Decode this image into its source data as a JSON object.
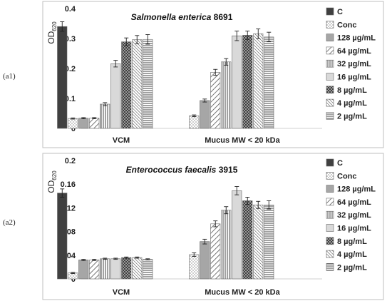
{
  "chart_data": [
    {
      "panel_label": "(a1)",
      "type": "bar",
      "title": "Salmonella enterica",
      "title_strain": "8691",
      "ylabel": "OD",
      "ylabel_sub": "620",
      "ylim": [
        0,
        0.4
      ],
      "yticks": [
        0,
        0.1,
        0.2,
        0.3,
        0.4
      ],
      "ytick_labels": [
        "0",
        "0.1",
        "0.2",
        "0.3",
        "0.4"
      ],
      "categories": [
        "VCM",
        "Mucus MW < 20 kDa"
      ],
      "error_bars": true,
      "grid": false,
      "legend_position": "right",
      "series": [
        {
          "name": "C",
          "values": [
            0.34,
            null
          ],
          "errors": [
            0.016,
            null
          ]
        },
        {
          "name": "Conc",
          "values": [
            0.033,
            0.042
          ],
          "errors": [
            0.002,
            0.003
          ]
        },
        {
          "name": "128 µg/mL",
          "values": [
            0.034,
            0.093
          ],
          "errors": [
            0.002,
            0.005
          ]
        },
        {
          "name": "64 µg/mL",
          "values": [
            0.034,
            0.187
          ],
          "errors": [
            0.002,
            0.01
          ]
        },
        {
          "name": "32 µg/mL",
          "values": [
            0.081,
            0.222
          ],
          "errors": [
            0.005,
            0.011
          ]
        },
        {
          "name": "16 µg/mL",
          "values": [
            0.216,
            0.309
          ],
          "errors": [
            0.011,
            0.016
          ]
        },
        {
          "name": "8 µg/mL",
          "values": [
            0.289,
            0.311
          ],
          "errors": [
            0.013,
            0.014
          ]
        },
        {
          "name": "4 µg/mL",
          "values": [
            0.296,
            0.316
          ],
          "errors": [
            0.014,
            0.016
          ]
        },
        {
          "name": "2 µg/mL",
          "values": [
            0.297,
            0.305
          ],
          "errors": [
            0.016,
            0.016
          ]
        }
      ]
    },
    {
      "panel_label": "(a2)",
      "type": "bar",
      "title": "Enterococcus faecalis",
      "title_strain": "3915",
      "ylabel": "OD",
      "ylabel_sub": "620",
      "ylim": [
        0,
        0.2
      ],
      "yticks": [
        0,
        0.04,
        0.08,
        0.12,
        0.16,
        0.2
      ],
      "ytick_labels": [
        "0",
        "0.04",
        "0.08",
        "0.12",
        "0.16",
        "0.2"
      ],
      "categories": [
        "VCM",
        "Mucus MW < 20 kDa"
      ],
      "error_bars": true,
      "grid": false,
      "legend_position": "right",
      "series": [
        {
          "name": "C",
          "values": [
            0.145,
            null
          ],
          "errors": [
            0.007,
            null
          ]
        },
        {
          "name": "Conc",
          "values": [
            0.01,
            0.041
          ],
          "errors": [
            0.001,
            0.003
          ]
        },
        {
          "name": "128 µg/mL",
          "values": [
            0.032,
            0.063
          ],
          "errors": [
            0.001,
            0.004
          ]
        },
        {
          "name": "64 µg/mL",
          "values": [
            0.032,
            0.093
          ],
          "errors": [
            0.001,
            0.005
          ]
        },
        {
          "name": "32 µg/mL",
          "values": [
            0.034,
            0.116
          ],
          "errors": [
            0.001,
            0.006
          ]
        },
        {
          "name": "16 µg/mL",
          "values": [
            0.034,
            0.149
          ],
          "errors": [
            0.001,
            0.007
          ]
        },
        {
          "name": "8 µg/mL",
          "values": [
            0.036,
            0.132
          ],
          "errors": [
            0.001,
            0.006
          ]
        },
        {
          "name": "4 µg/mL",
          "values": [
            0.036,
            0.125
          ],
          "errors": [
            0.001,
            0.006
          ]
        },
        {
          "name": "2 µg/mL",
          "values": [
            0.033,
            0.125
          ],
          "errors": [
            0.001,
            0.007
          ]
        }
      ]
    }
  ],
  "series_styles": [
    {
      "fill": "#404040",
      "pattern": "solid"
    },
    {
      "fill": "#ffffff",
      "pattern": "dots"
    },
    {
      "fill": "#a6a6a6",
      "pattern": "solid"
    },
    {
      "fill": "#ffffff",
      "pattern": "wide-diagonal"
    },
    {
      "fill": "#ffffff",
      "pattern": "vertical-lines"
    },
    {
      "fill": "#d9d9d9",
      "pattern": "solid"
    },
    {
      "fill": "#595959",
      "pattern": "checker"
    },
    {
      "fill": "#ffffff",
      "pattern": "dense-diagonal"
    },
    {
      "fill": "#ffffff",
      "pattern": "horizontal-lines"
    }
  ]
}
